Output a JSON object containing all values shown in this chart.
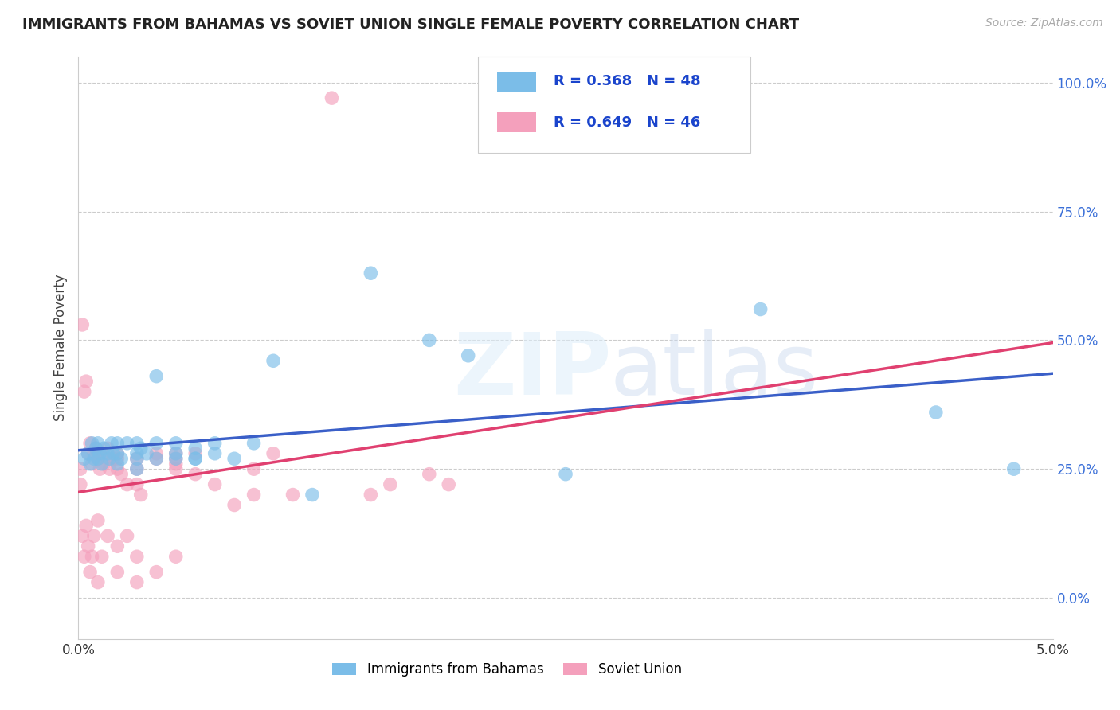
{
  "title": "IMMIGRANTS FROM BAHAMAS VS SOVIET UNION SINGLE FEMALE POVERTY CORRELATION CHART",
  "source": "Source: ZipAtlas.com",
  "ylabel": "Single Female Poverty",
  "legend_bahamas": "Immigrants from Bahamas",
  "legend_soviet": "Soviet Union",
  "xlim": [
    0.0,
    0.05
  ],
  "ylim": [
    -0.08,
    1.05
  ],
  "yticks": [
    0.0,
    0.25,
    0.5,
    0.75,
    1.0
  ],
  "ytick_labels": [
    "0.0%",
    "25.0%",
    "50.0%",
    "75.0%",
    "100.0%"
  ],
  "xticks": [
    0.0,
    0.05
  ],
  "xtick_labels": [
    "0.0%",
    "5.0%"
  ],
  "R_bahamas": 0.368,
  "N_bahamas": 48,
  "R_soviet": 0.649,
  "N_soviet": 46,
  "color_bahamas": "#7bbde8",
  "color_soviet": "#f4a0bc",
  "color_bahamas_line": "#3a5fc8",
  "color_soviet_line": "#e04070",
  "grid_color": "#cccccc",
  "bahamas_x": [
    0.0003,
    0.0005,
    0.0006,
    0.0007,
    0.0008,
    0.0009,
    0.001,
    0.001,
    0.0011,
    0.0012,
    0.0013,
    0.0015,
    0.0016,
    0.0017,
    0.0018,
    0.002,
    0.002,
    0.002,
    0.0022,
    0.0025,
    0.003,
    0.003,
    0.003,
    0.003,
    0.0032,
    0.0035,
    0.004,
    0.004,
    0.004,
    0.005,
    0.005,
    0.005,
    0.006,
    0.006,
    0.006,
    0.007,
    0.007,
    0.008,
    0.009,
    0.01,
    0.012,
    0.015,
    0.018,
    0.02,
    0.025,
    0.035,
    0.044,
    0.048
  ],
  "bahamas_y": [
    0.27,
    0.28,
    0.26,
    0.3,
    0.27,
    0.29,
    0.27,
    0.3,
    0.28,
    0.26,
    0.29,
    0.28,
    0.27,
    0.3,
    0.28,
    0.28,
    0.3,
    0.26,
    0.27,
    0.3,
    0.28,
    0.27,
    0.3,
    0.25,
    0.29,
    0.28,
    0.3,
    0.27,
    0.43,
    0.28,
    0.3,
    0.27,
    0.27,
    0.29,
    0.27,
    0.3,
    0.28,
    0.27,
    0.3,
    0.46,
    0.2,
    0.63,
    0.5,
    0.47,
    0.24,
    0.56,
    0.36,
    0.25
  ],
  "soviet_x": [
    0.0001,
    0.0002,
    0.0003,
    0.0004,
    0.0005,
    0.0006,
    0.0007,
    0.0008,
    0.0009,
    0.001,
    0.001,
    0.0011,
    0.0012,
    0.0013,
    0.0015,
    0.0015,
    0.0016,
    0.0018,
    0.002,
    0.002,
    0.002,
    0.0022,
    0.0025,
    0.003,
    0.003,
    0.003,
    0.0032,
    0.004,
    0.004,
    0.005,
    0.005,
    0.005,
    0.005,
    0.006,
    0.006,
    0.007,
    0.008,
    0.009,
    0.009,
    0.01,
    0.011,
    0.013,
    0.015,
    0.016,
    0.018,
    0.019
  ],
  "soviet_y": [
    0.25,
    0.53,
    0.4,
    0.42,
    0.28,
    0.3,
    0.26,
    0.28,
    0.29,
    0.27,
    0.28,
    0.25,
    0.28,
    0.26,
    0.27,
    0.29,
    0.25,
    0.27,
    0.25,
    0.28,
    0.27,
    0.24,
    0.22,
    0.22,
    0.25,
    0.27,
    0.2,
    0.27,
    0.28,
    0.25,
    0.26,
    0.28,
    0.27,
    0.24,
    0.28,
    0.22,
    0.18,
    0.2,
    0.25,
    0.28,
    0.2,
    0.97,
    0.2,
    0.22,
    0.24,
    0.22
  ],
  "soviet_extra_low_x": [
    0.0001,
    0.0002,
    0.0003,
    0.0004,
    0.0005,
    0.0006,
    0.0007,
    0.0008,
    0.001,
    0.001,
    0.0012,
    0.0015,
    0.002,
    0.002,
    0.0025,
    0.003,
    0.003,
    0.004,
    0.005
  ],
  "soviet_extra_low_y": [
    0.22,
    0.12,
    0.08,
    0.14,
    0.1,
    0.05,
    0.08,
    0.12,
    0.15,
    0.03,
    0.08,
    0.12,
    0.1,
    0.05,
    0.12,
    0.08,
    0.03,
    0.05,
    0.08
  ]
}
